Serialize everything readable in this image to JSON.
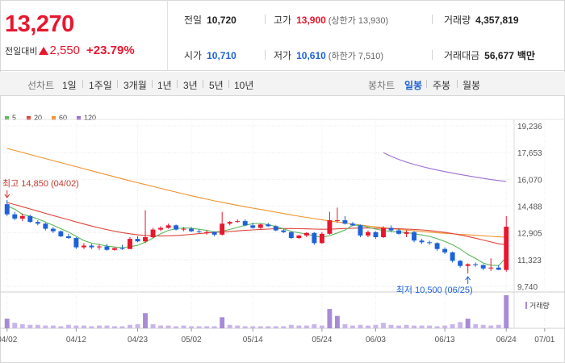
{
  "quote": {
    "price": "13,270",
    "change_label": "전일대비",
    "change": "2,550",
    "change_pct": "+23.79%",
    "prev_close_label": "전일",
    "prev_close": "10,720",
    "open_label": "시가",
    "open": "10,710",
    "high_label": "고가",
    "high": "13,900",
    "upper_limit": "(상한가 13,930)",
    "low_label": "저가",
    "low": "10,610",
    "lower_limit": "(하한가 7,510)",
    "volume_label": "거래량",
    "volume": "4,357,819",
    "amount_label": "거래대금",
    "amount": "56,677",
    "amount_unit": "백만",
    "colors": {
      "up": "#e8162e",
      "down": "#1d62d8"
    }
  },
  "periods": {
    "line_chart_label": "선차트",
    "line_options": [
      "1일",
      "1주일",
      "3개월",
      "1년",
      "3년",
      "5년",
      "10년"
    ],
    "candle_label": "봉차트",
    "candle_options": [
      "일봉",
      "주봉",
      "월봉"
    ],
    "active_candle": "일봉"
  },
  "legend": [
    {
      "name": "5",
      "color": "#5cb85c"
    },
    {
      "name": "20",
      "color": "#e0453b"
    },
    {
      "name": "60",
      "color": "#f0932b"
    },
    {
      "name": "120",
      "color": "#9b6fd1"
    }
  ],
  "chart_data": {
    "type": "candlestick",
    "y_ticks": [
      "19,236",
      "17,653",
      "16,070",
      "14,488",
      "12,905",
      "11,323",
      "9,740"
    ],
    "ylim": [
      9740,
      19236
    ],
    "x_ticks": [
      "04/02",
      "04/12",
      "04/23",
      "05/02",
      "05/14",
      "05/24",
      "06/03",
      "06/13",
      "06/24",
      "07/01"
    ],
    "x_tick_index": [
      0,
      9,
      17,
      24,
      32,
      41,
      48,
      57,
      65,
      70
    ],
    "max_annotation": "최고 14,850 (04/02)",
    "min_annotation": "최저 10,500 (06/25)",
    "volume_label": "거래량",
    "candles": [
      [
        14600,
        14850,
        13900,
        14000
      ],
      [
        14000,
        14150,
        13650,
        13750
      ],
      [
        13750,
        14050,
        13600,
        13900
      ],
      [
        13900,
        13980,
        13500,
        13550
      ],
      [
        13550,
        13650,
        13350,
        13450
      ],
      [
        13450,
        13500,
        13050,
        13150
      ],
      [
        13150,
        13250,
        12900,
        13000
      ],
      [
        13000,
        13050,
        12650,
        12700
      ],
      [
        12700,
        12850,
        12550,
        12600
      ],
      [
        12600,
        12650,
        11950,
        12050
      ],
      [
        12050,
        12300,
        11950,
        12150
      ],
      [
        12150,
        12250,
        11950,
        12050
      ],
      [
        12050,
        12250,
        11900,
        12100
      ],
      [
        12100,
        12250,
        11850,
        11900
      ],
      [
        11900,
        12050,
        11850,
        12000
      ],
      [
        12000,
        12200,
        11900,
        11950
      ],
      [
        11950,
        12650,
        11950,
        12550
      ],
      [
        12550,
        12700,
        12350,
        12400
      ],
      [
        12400,
        14250,
        12300,
        12650
      ],
      [
        12650,
        13200,
        12600,
        13100
      ],
      [
        13100,
        13300,
        13000,
        13200
      ],
      [
        13200,
        13450,
        13150,
        13350
      ],
      [
        13350,
        13400,
        13050,
        13100
      ],
      [
        13100,
        13250,
        13000,
        13150
      ],
      [
        13150,
        13250,
        12950,
        13000
      ],
      [
        13000,
        13100,
        12900,
        12950
      ],
      [
        12950,
        13050,
        12800,
        12950
      ],
      [
        12950,
        13000,
        12700,
        12800
      ],
      [
        12800,
        14150,
        12750,
        13450
      ],
      [
        13450,
        13600,
        13350,
        13550
      ],
      [
        13550,
        13700,
        13500,
        13600
      ],
      [
        13600,
        13700,
        13300,
        13350
      ],
      [
        13350,
        13500,
        13150,
        13200
      ],
      [
        13200,
        13450,
        13150,
        13400
      ],
      [
        13400,
        13500,
        13250,
        13300
      ],
      [
        13300,
        13350,
        13000,
        13050
      ],
      [
        13050,
        13150,
        12900,
        12950
      ],
      [
        12950,
        13000,
        12550,
        12600
      ],
      [
        12600,
        12800,
        12550,
        12750
      ],
      [
        12750,
        12950,
        12650,
        12900
      ],
      [
        12900,
        12950,
        12200,
        12300
      ],
      [
        12300,
        12950,
        12250,
        12850
      ],
      [
        12850,
        14150,
        12800,
        13650
      ],
      [
        13650,
        14400,
        13500,
        13650
      ],
      [
        13650,
        13900,
        13400,
        13450
      ],
      [
        13450,
        13550,
        13300,
        13350
      ],
      [
        13350,
        13400,
        12650,
        12750
      ],
      [
        12750,
        13050,
        12650,
        12950
      ],
      [
        12950,
        13000,
        12550,
        12650
      ],
      [
        12650,
        13300,
        12600,
        13200
      ],
      [
        13200,
        13350,
        12950,
        13050
      ],
      [
        13050,
        13150,
        12800,
        12850
      ],
      [
        12850,
        13050,
        12650,
        12950
      ],
      [
        12950,
        13000,
        12350,
        12450
      ],
      [
        12450,
        12550,
        12250,
        12350
      ],
      [
        12350,
        12450,
        12200,
        12300
      ],
      [
        12300,
        12350,
        11850,
        11950
      ],
      [
        11950,
        12050,
        11650,
        11750
      ],
      [
        11750,
        11800,
        11150,
        11250
      ],
      [
        11250,
        11300,
        10850,
        10950
      ],
      [
        10950,
        11100,
        10500,
        11050
      ],
      [
        11050,
        11150,
        10900,
        11000
      ],
      [
        11000,
        11050,
        10700,
        10800
      ],
      [
        10800,
        11400,
        10650,
        10850
      ],
      [
        10850,
        11000,
        10700,
        10720
      ],
      [
        10710,
        13900,
        10610,
        13270
      ]
    ],
    "volumes": [
      14,
      8,
      6,
      5,
      5,
      4,
      4,
      3,
      5,
      4,
      4,
      3,
      4,
      4,
      3,
      3,
      5,
      6,
      22,
      6,
      4,
      4,
      3,
      4,
      3,
      3,
      3,
      3,
      16,
      5,
      4,
      3,
      3,
      3,
      3,
      3,
      3,
      5,
      4,
      4,
      6,
      4,
      28,
      18,
      6,
      4,
      5,
      4,
      5,
      8,
      5,
      4,
      5,
      4,
      4,
      4,
      3,
      4,
      6,
      9,
      14,
      6,
      5,
      4,
      5,
      48
    ],
    "ma5": [
      14500,
      14300,
      14000,
      13880,
      13730,
      13550,
      13350,
      13150,
      12950,
      12700,
      12450,
      12300,
      12220,
      12120,
      12070,
      12030,
      12090,
      12170,
      12350,
      12600,
      12850,
      13050,
      13150,
      13200,
      13180,
      13120,
      13050,
      12960,
      13000,
      13110,
      13230,
      13350,
      13450,
      13460,
      13390,
      13290,
      13140,
      12990,
      12910,
      12840,
      12720,
      12640,
      12740,
      12900,
      13070,
      13350,
      13360,
      13240,
      13130,
      13040,
      12990,
      12950,
      12930,
      12850,
      12780,
      12700,
      12560,
      12400,
      12200,
      11950,
      11630,
      11390,
      11120,
      10990,
      10970,
      11450
    ],
    "ma20": [
      14700,
      14580,
      14450,
      14320,
      14190,
      14060,
      13930,
      13800,
      13680,
      13550,
      13430,
      13310,
      13200,
      13100,
      13000,
      12920,
      12850,
      12790,
      12750,
      12730,
      12720,
      12730,
      12750,
      12780,
      12820,
      12860,
      12900,
      12930,
      12960,
      12990,
      13020,
      13050,
      13080,
      13110,
      13130,
      13150,
      13160,
      13160,
      13150,
      13140,
      13130,
      13120,
      13120,
      13140,
      13160,
      13180,
      13190,
      13190,
      13180,
      13170,
      13160,
      13150,
      13130,
      13110,
      13080,
      13040,
      12990,
      12930,
      12860,
      12780,
      12690,
      12590,
      12480,
      12370,
      12260,
      12200
    ],
    "ma60": [
      17900,
      17780,
      17660,
      17540,
      17420,
      17300,
      17180,
      17060,
      16940,
      16820,
      16700,
      16580,
      16460,
      16340,
      16220,
      16100,
      15980,
      15870,
      15760,
      15650,
      15540,
      15430,
      15320,
      15210,
      15100,
      15000,
      14900,
      14800,
      14710,
      14620,
      14530,
      14450,
      14370,
      14290,
      14210,
      14130,
      14050,
      13970,
      13890,
      13820,
      13750,
      13680,
      13610,
      13550,
      13490,
      13430,
      13370,
      13310,
      13260,
      13210,
      13160,
      13110,
      13070,
      13030,
      12990,
      12950,
      12910,
      12880,
      12850,
      12820,
      12790,
      12760,
      12730,
      12700,
      12670,
      12650
    ],
    "ma120": [
      null,
      null,
      null,
      null,
      null,
      null,
      null,
      null,
      null,
      null,
      null,
      null,
      null,
      null,
      null,
      null,
      null,
      null,
      null,
      null,
      null,
      null,
      null,
      null,
      null,
      null,
      null,
      null,
      null,
      null,
      null,
      null,
      null,
      null,
      null,
      null,
      null,
      null,
      null,
      null,
      null,
      null,
      null,
      null,
      null,
      null,
      null,
      null,
      null,
      17650,
      17430,
      17250,
      17090,
      16950,
      16830,
      16720,
      16620,
      16530,
      16440,
      16360,
      16280,
      16200,
      16130,
      16060,
      16000,
      15950
    ]
  }
}
